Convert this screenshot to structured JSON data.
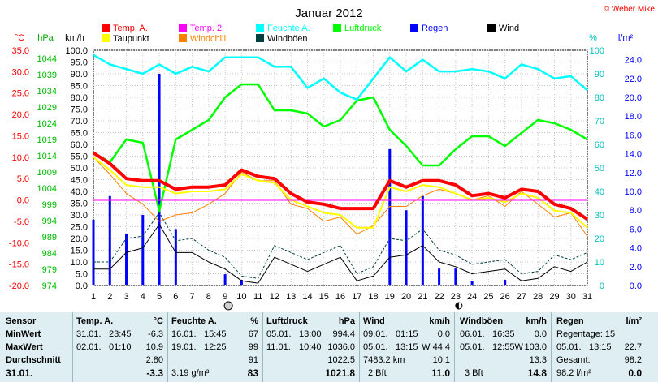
{
  "title": "Januar 2012",
  "copyright": "© Weber Mike",
  "legend": [
    {
      "label": "Temp. A.",
      "color": "#ff0000"
    },
    {
      "label": "Temp. 2",
      "color": "#ff00ff"
    },
    {
      "label": "Feuchte A.",
      "color": "#00ffff"
    },
    {
      "label": "Luftdruck",
      "color": "#00ff00"
    },
    {
      "label": "Regen",
      "color": "#0000ff"
    },
    {
      "label": "Wind",
      "color": "#000000"
    },
    {
      "label": "Taupunkt",
      "color": "#ffff00"
    },
    {
      "label": "Windchill",
      "color": "#ff8000"
    },
    {
      "label": "Windböen",
      "color": "#004040"
    }
  ],
  "axis_units": {
    "temp": "°C",
    "pressure": "hPa",
    "wind": "km/h",
    "humidity": "%",
    "rain": "l/m²"
  },
  "chart_data": {
    "type": "line",
    "title": "Januar 2012",
    "x": [
      1,
      2,
      3,
      4,
      5,
      6,
      7,
      8,
      9,
      10,
      11,
      12,
      13,
      14,
      15,
      16,
      17,
      18,
      19,
      20,
      21,
      22,
      23,
      24,
      25,
      26,
      27,
      28,
      29,
      30,
      31
    ],
    "axes": {
      "temp": {
        "min": -20,
        "max": 35,
        "ticks": [
          35.0,
          30.0,
          25.0,
          20.0,
          15.0,
          10.0,
          5.0,
          0.0,
          -5.0,
          -10.0,
          -15.0,
          -20.0
        ]
      },
      "pressure": {
        "min": 974,
        "max": 1046.5,
        "ticks": [
          1044,
          1039,
          1034,
          1029,
          1024,
          1019,
          1014,
          1009,
          1004,
          999,
          994,
          989,
          984,
          979,
          974
        ]
      },
      "wind": {
        "min": 0,
        "max": 100,
        "ticks": [
          100.0,
          95.0,
          90.0,
          85.0,
          80.0,
          75.0,
          70.0,
          65.0,
          60.0,
          55.0,
          50.0,
          45.0,
          40.0,
          35.0,
          30.0,
          25.0,
          20.0,
          15.0,
          10.0,
          5.0,
          0.0
        ]
      },
      "humidity": {
        "min": 0,
        "max": 100,
        "ticks": [
          100,
          90,
          80,
          70,
          60,
          50,
          40,
          30,
          20,
          10,
          0
        ]
      },
      "rain": {
        "min": 0,
        "max": 25,
        "ticks": [
          24.0,
          22.0,
          20.0,
          18.0,
          16.0,
          14.0,
          12.0,
          10.0,
          8.0,
          6.0,
          4.0,
          2.0,
          0.0
        ]
      }
    },
    "series": [
      {
        "name": "Temp. A.",
        "axis": "temp",
        "color": "#ff0000",
        "values": [
          11.0,
          8.5,
          5.0,
          4.5,
          4.5,
          2.5,
          3.0,
          3.0,
          3.5,
          7.0,
          5.5,
          5.0,
          1.5,
          -0.5,
          -1.0,
          -2.0,
          -2.0,
          -2.0,
          4.5,
          3.0,
          4.5,
          4.5,
          3.5,
          1.0,
          1.5,
          0.5,
          2.5,
          2.0,
          -1.0,
          -2.0,
          -4.5
        ]
      },
      {
        "name": "Temp. 2",
        "axis": "temp",
        "color": "#ff00ff",
        "values": [
          0,
          0,
          0,
          0,
          0,
          0,
          0,
          0,
          0,
          0,
          0,
          0,
          0,
          0,
          0,
          0,
          0,
          0,
          0,
          0,
          0,
          0,
          0,
          0,
          0,
          0,
          0,
          0,
          0,
          0,
          0
        ]
      },
      {
        "name": "Taupunkt",
        "axis": "temp",
        "color": "#ffff00",
        "values": [
          10.0,
          7.0,
          3.5,
          3.0,
          3.0,
          1.5,
          2.0,
          2.0,
          2.5,
          6.0,
          4.5,
          4.0,
          0.0,
          -1.5,
          -3.0,
          -3.5,
          -6.5,
          -6.5,
          3.0,
          2.0,
          3.5,
          3.0,
          1.5,
          0.0,
          0.5,
          -0.5,
          1.5,
          0.5,
          -2.5,
          -3.0,
          -6.5
        ]
      },
      {
        "name": "Windchill",
        "axis": "temp",
        "color": "#ff8000",
        "values": [
          10.0,
          6.0,
          1.5,
          -1.0,
          -5.0,
          -3.5,
          -3.0,
          -1.0,
          1.5,
          6.5,
          4.5,
          4.5,
          -1.0,
          -2.0,
          -5.0,
          -4.0,
          -8.0,
          -6.0,
          -1.5,
          -1.5,
          1.0,
          2.5,
          1.5,
          0.0,
          1.0,
          -1.5,
          2.0,
          -1.0,
          -4.0,
          -3.0,
          -8.5
        ]
      },
      {
        "name": "Feuchte A.",
        "axis": "humidity",
        "color": "#00ffff",
        "values": [
          98,
          94,
          92,
          90,
          94,
          90,
          93,
          91,
          97,
          97,
          97,
          93,
          93,
          84,
          88,
          82,
          79,
          88,
          97,
          91,
          96,
          91,
          91,
          92,
          91,
          88,
          94,
          92,
          88,
          89,
          83
        ]
      },
      {
        "name": "Luftdruck",
        "axis": "pressure",
        "color": "#00ff00",
        "values": [
          1015,
          1012,
          1019,
          1018,
          997,
          1019,
          1022,
          1025,
          1032,
          1036,
          1036,
          1028,
          1028,
          1027,
          1023,
          1025,
          1031,
          1032,
          1022,
          1017,
          1011,
          1011,
          1016,
          1020,
          1020,
          1017,
          1021,
          1025,
          1024,
          1022,
          1019
        ]
      },
      {
        "name": "Wind",
        "axis": "wind",
        "color": "#000000",
        "values": [
          7,
          7,
          14,
          16,
          26,
          14,
          14,
          10,
          7,
          2,
          1,
          12,
          9,
          6,
          9,
          12,
          2,
          4,
          12,
          13,
          17,
          10,
          8,
          5,
          6,
          7,
          2,
          3,
          8,
          6,
          10
        ]
      },
      {
        "name": "Windböen",
        "axis": "wind",
        "color": "#004040",
        "values": [
          10,
          10,
          20,
          21,
          31,
          19,
          20,
          15,
          12,
          4,
          3,
          17,
          14,
          11,
          14,
          17,
          5,
          8,
          20,
          19,
          24,
          15,
          13,
          9,
          10,
          11,
          5,
          6,
          13,
          11,
          14
        ]
      },
      {
        "name": "Regen",
        "axis": "rain",
        "color": "#0000ff",
        "type": "bar",
        "values": [
          7.0,
          9.5,
          5.5,
          7.5,
          22.5,
          6.0,
          0,
          0,
          1.2,
          0.6,
          0,
          0,
          0,
          0,
          0,
          0,
          0,
          0,
          14.5,
          8.0,
          9.5,
          1.8,
          1.8,
          0.5,
          0,
          0.6,
          0,
          0,
          0,
          0,
          0
        ]
      }
    ]
  },
  "table": {
    "sensor": {
      "header": "Sensor",
      "rows": [
        "MinWert",
        "MaxWert",
        "Durchschnitt",
        "31.01."
      ]
    },
    "temp": {
      "header": "Temp. A.",
      "unit": "°C",
      "min_date": "31.01.",
      "min_time": "23:45",
      "min_val": "-6.3",
      "max_date": "02.01.",
      "max_time": "01:10",
      "max_val": "10.9",
      "avg": "2.80",
      "today": "-3.3"
    },
    "hum": {
      "header": "Feuchte A.",
      "unit": "%",
      "min_date": "16.01.",
      "min_time": "15:45",
      "min_val": "67",
      "max_date": "19.01.",
      "max_time": "12:25",
      "max_val": "99",
      "avg": "91",
      "today_extra": "3.19 g/m³",
      "today": "83"
    },
    "press": {
      "header": "Luftdruck",
      "unit": "hPa",
      "min_date": "05.01.",
      "min_time": "13:00",
      "min_val": "994.4",
      "max_date": "11.01.",
      "max_time": "10:40",
      "max_val": "1036.0",
      "avg": "1022.5",
      "today": "1021.8"
    },
    "wind": {
      "header": "Wind",
      "unit": "km/h",
      "min_date": "09.01.",
      "min_time": "01:15",
      "min_val": "0.0",
      "max_date": "05.01.",
      "max_time": "13:15",
      "max_val": "W 44.4",
      "avg_extra": "7483.2 km",
      "avg": "10.1",
      "today_extra": "2 Bft",
      "today": "11.0"
    },
    "gust": {
      "header": "Windböen",
      "unit": "km/h",
      "min_date": "06.01.",
      "min_time": "16:35",
      "min_val": "0.0",
      "max_date": "05.01.",
      "max_time": "12:55W",
      "max_val": "103.0",
      "avg": "13.3",
      "today_extra": "3 Bft",
      "today": "14.8"
    },
    "rain": {
      "header": "Regen",
      "unit": "l/m²",
      "min_label": "Regentage: 15",
      "max_date": "05.01.",
      "max_time": "13:15",
      "max_val": "22.7",
      "avg_label": "Gesamt:",
      "avg": "98.2",
      "today_extra": "98.2 l/m²",
      "today": "0.0"
    }
  }
}
